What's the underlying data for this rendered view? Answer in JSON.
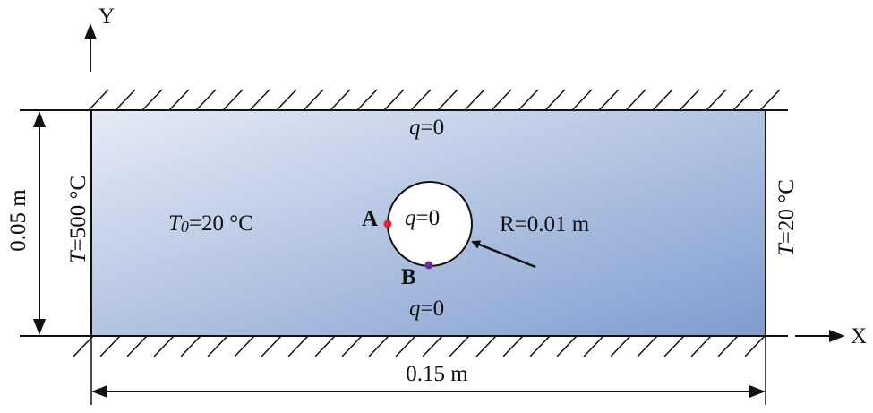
{
  "axes": {
    "y_label": "Y",
    "x_label": "X"
  },
  "boundaries": {
    "top": {
      "q": "q",
      "rest": "=0"
    },
    "bottom": {
      "q": "q",
      "rest": "=0"
    },
    "left": {
      "T": "T",
      "rest": "=500 °C"
    },
    "right": {
      "T": "T",
      "rest": "=20 °C"
    }
  },
  "initial_condition": {
    "T": "T",
    "sub": "0",
    "rest": "=20 °C"
  },
  "hole": {
    "q": "q",
    "rest": "=0",
    "radius_label": "R=0.01 m"
  },
  "points": [
    {
      "label": "A",
      "color": "#e8262a"
    },
    {
      "label": "B",
      "color": "#6a2c91"
    }
  ],
  "dimensions": {
    "height": "0.05 m",
    "width": "0.15 m"
  },
  "colors": {
    "domain_light": "#e6ebf6",
    "domain_dark": "#7f9ccf",
    "outline": "#000000"
  }
}
